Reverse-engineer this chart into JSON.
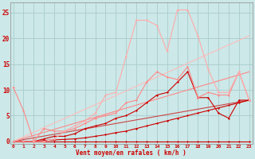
{
  "background_color": "#cce8e8",
  "grid_color": "#aacccc",
  "xlabel": "Vent moyen/en rafales ( km/h )",
  "tick_color": "#cc0000",
  "yticks": [
    0,
    5,
    10,
    15,
    20,
    25
  ],
  "xticks": [
    0,
    1,
    2,
    3,
    4,
    5,
    6,
    7,
    8,
    9,
    10,
    11,
    12,
    13,
    14,
    15,
    16,
    17,
    18,
    19,
    20,
    21,
    22,
    23
  ],
  "xlim": [
    -0.3,
    23.3
  ],
  "ylim": [
    -0.5,
    27
  ],
  "series": [
    {
      "x": [
        0,
        1,
        2,
        3,
        4,
        5,
        6,
        7,
        8,
        9,
        10,
        11,
        12,
        13,
        14,
        15,
        16,
        17,
        18,
        19,
        20,
        21,
        22,
        23
      ],
      "y": [
        0,
        0,
        0,
        0,
        0,
        0,
        0,
        0,
        0,
        0,
        0,
        0,
        0,
        0,
        0,
        0,
        0,
        0,
        0,
        0,
        0,
        0,
        0,
        0
      ],
      "color": "#cc0000",
      "lw": 0.8,
      "marker": "D",
      "ms": 1.5
    },
    {
      "x": [
        0,
        1,
        2,
        3,
        4,
        5,
        6,
        7,
        8,
        9,
        10,
        11,
        12,
        13,
        14,
        15,
        16,
        17,
        18,
        19,
        20,
        21,
        22,
        23
      ],
      "y": [
        0,
        0,
        0,
        0.2,
        0.3,
        0.4,
        0.5,
        0.7,
        1.0,
        1.3,
        1.7,
        2.0,
        2.5,
        3.0,
        3.5,
        4.0,
        4.5,
        5.0,
        5.5,
        6.0,
        6.5,
        7.0,
        7.5,
        8.0
      ],
      "color": "#cc0000",
      "lw": 0.8,
      "marker": "D",
      "ms": 1.5
    },
    {
      "x": [
        0,
        1,
        2,
        3,
        4,
        5,
        6,
        7,
        8,
        9,
        10,
        11,
        12,
        13,
        14,
        15,
        16,
        17,
        18,
        19,
        20,
        21,
        22,
        23
      ],
      "y": [
        0,
        0,
        0,
        0.5,
        1.0,
        1.0,
        1.5,
        2.5,
        3.0,
        3.5,
        4.5,
        5.0,
        6.0,
        7.5,
        9.0,
        9.5,
        11.5,
        13.5,
        8.5,
        8.5,
        5.5,
        4.5,
        8.0,
        8.0
      ],
      "color": "#cc0000",
      "lw": 0.8,
      "marker": "D",
      "ms": 1.5
    },
    {
      "x": [
        0,
        1,
        2,
        3,
        4,
        5,
        6,
        7,
        8,
        9,
        10,
        11,
        12,
        13,
        14,
        15,
        16,
        17,
        18,
        19,
        20,
        21,
        22,
        23
      ],
      "y": [
        10.5,
        6.0,
        0,
        2.5,
        2.0,
        2.0,
        2.5,
        3.5,
        4.5,
        5.0,
        5.5,
        7.5,
        8.0,
        11.5,
        13.5,
        12.5,
        12.0,
        14.5,
        8.5,
        9.5,
        9.0,
        9.0,
        13.5,
        8.0
      ],
      "color": "#ff8888",
      "lw": 0.8,
      "marker": "D",
      "ms": 1.5
    },
    {
      "x": [
        0,
        1,
        2,
        3,
        4,
        5,
        6,
        7,
        8,
        9,
        10,
        11,
        12,
        13,
        14,
        15,
        16,
        17,
        18,
        19,
        20,
        21,
        22,
        23
      ],
      "y": [
        0,
        0,
        0,
        0,
        0.5,
        2.0,
        3.0,
        4.0,
        5.5,
        9.0,
        9.5,
        16.5,
        23.5,
        23.5,
        22.5,
        17.5,
        25.5,
        25.5,
        20.5,
        14.0,
        9.5,
        9.5,
        13.5,
        8.0
      ],
      "color": "#ffaaaa",
      "lw": 0.8,
      "marker": "D",
      "ms": 1.5
    }
  ],
  "linear_series": [
    {
      "x": [
        0,
        23
      ],
      "y": [
        0,
        8.0
      ],
      "color": "#cc4444",
      "lw": 0.8
    },
    {
      "x": [
        0,
        23
      ],
      "y": [
        0,
        13.5
      ],
      "color": "#ff8888",
      "lw": 0.8
    },
    {
      "x": [
        0,
        23
      ],
      "y": [
        0,
        20.5
      ],
      "color": "#ffbbbb",
      "lw": 0.8
    }
  ]
}
